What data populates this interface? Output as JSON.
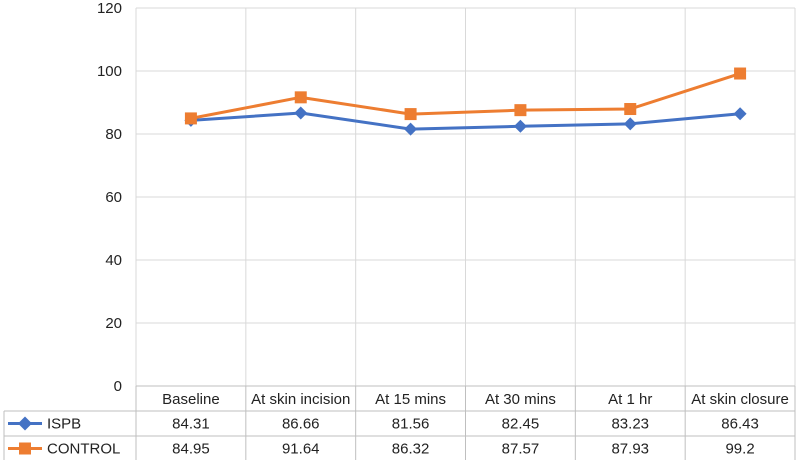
{
  "chart_data": {
    "type": "line",
    "title": "",
    "xlabel": "",
    "ylabel": "",
    "ylim": [
      0,
      120
    ],
    "yticks": [
      "0",
      "20",
      "40",
      "60",
      "80",
      "100",
      "120"
    ],
    "grid": true,
    "legend": "data table, left of rows",
    "categories": [
      "Baseline",
      "At skin incision",
      "At 15 mins",
      "At 30 mins",
      "At 1 hr",
      "At skin closure"
    ],
    "series": [
      {
        "name": "ISPB",
        "color": "#4472c4",
        "marker": "diamond",
        "values": [
          84.31,
          86.66,
          81.56,
          82.45,
          83.23,
          86.43
        ],
        "labels": [
          "84.31",
          "86.66",
          "81.56",
          "82.45",
          "83.23",
          "86.43"
        ]
      },
      {
        "name": "CONTROL",
        "color": "#ed7d31",
        "marker": "square",
        "values": [
          84.95,
          91.64,
          86.32,
          87.57,
          87.93,
          99.2
        ],
        "labels": [
          "84.95",
          "91.64",
          "86.32",
          "87.57",
          "87.93",
          "99.2"
        ]
      }
    ]
  }
}
